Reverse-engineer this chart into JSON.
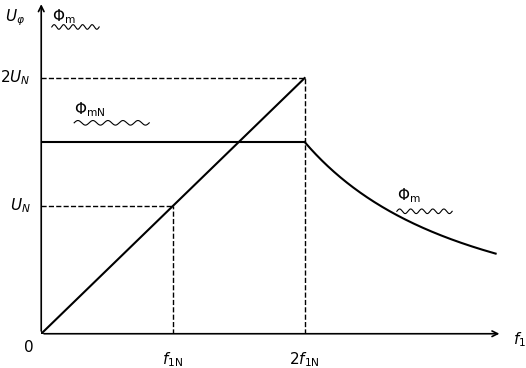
{
  "title": "",
  "xlim": [
    0,
    3.5
  ],
  "ylim": [
    0,
    2.6
  ],
  "f1N": 1.0,
  "f2N": 2.0,
  "UN": 1.0,
  "UN2": 2.0,
  "PhimN_level": 1.5,
  "background": "#ffffff",
  "line_color": "#000000",
  "dashed_color": "#000000",
  "figsize": [
    5.26,
    3.68
  ],
  "dpi": 100,
  "label_Uphi": "$U_{\\varphi}$",
  "label_Phim_top": "$\\Phi_{\\mathrm{m}}$",
  "label_PhimN": "$\\Phi_{\\mathrm{mN}}$",
  "label_2UN": "$2U_N$",
  "label_UN": "$U_N$",
  "label_zero": "$0$",
  "label_f1": "$f_1$",
  "label_f1N": "$f_{1\\mathrm{N}}$",
  "label_2f1N": "$2f_{1\\mathrm{N}}$",
  "label_Phim_curve": "$\\Phi_{\\mathrm{m}}$"
}
